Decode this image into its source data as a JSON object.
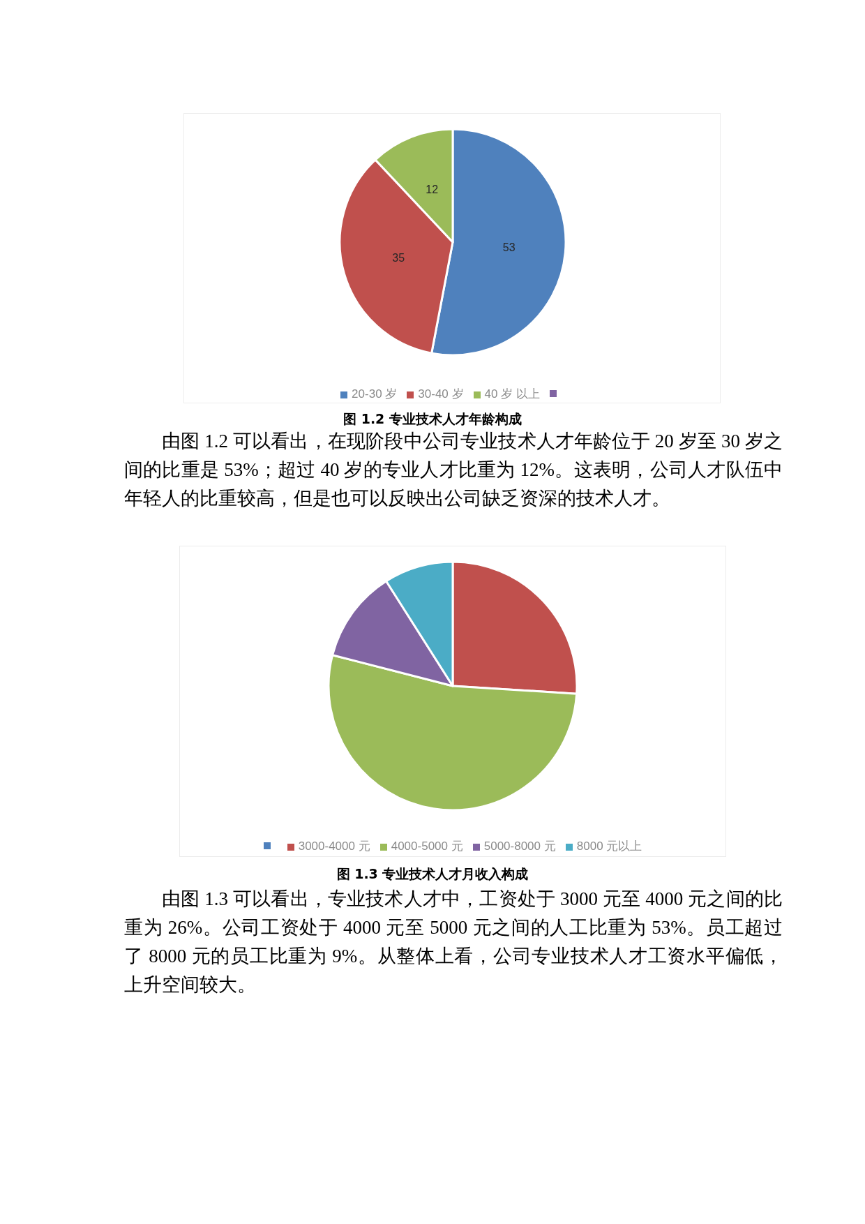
{
  "chart_data": [
    {
      "type": "pie",
      "categories": [
        "20-30 岁",
        "30-40 岁",
        "40 岁 以上",
        null
      ],
      "values": [
        53,
        35,
        12,
        0
      ],
      "colors": [
        "#4f81bd",
        "#c0504d",
        "#9bbb59",
        "#8064a2"
      ],
      "data_labels": true,
      "legend": "bottom",
      "annotations": [
        "图 1.2 专业技术人才年龄构成",
        "由图 1.2 可以看出，在现阶段中公司专业技术人才年龄位于 20 岁至 30 岁之间的比重是 53%；超过 40 岁的专业人才比重为 12%。这表明，公司人才队伍中年轻人的比重较高，但是也可以反映出公司缺乏资深的技术人才。"
      ]
    },
    {
      "type": "pie",
      "categories": [
        null,
        "3000-4000 元",
        "4000-5000 元",
        "5000-8000 元",
        "8000 元以上"
      ],
      "values": [
        0,
        26,
        53,
        12,
        9
      ],
      "colors": [
        "#4f81bd",
        "#c0504d",
        "#9bbb59",
        "#8064a2",
        "#4bacc6"
      ],
      "legend": "bottom",
      "annotations": [
        "图 1.3 专业技术人才月收入构成",
        "由图 1.3 可以看出，专业技术人才中，工资处于 3000 元至 4000 元之间的比重为 26%。公司工资处于 4000 元至 5000 元之间的人工比重为 53%。员工超过了 8000 元的员工比重为 9%。从整体上看，公司专业技术人才工资水平偏低，上升空间较大。"
      ]
    }
  ]
}
